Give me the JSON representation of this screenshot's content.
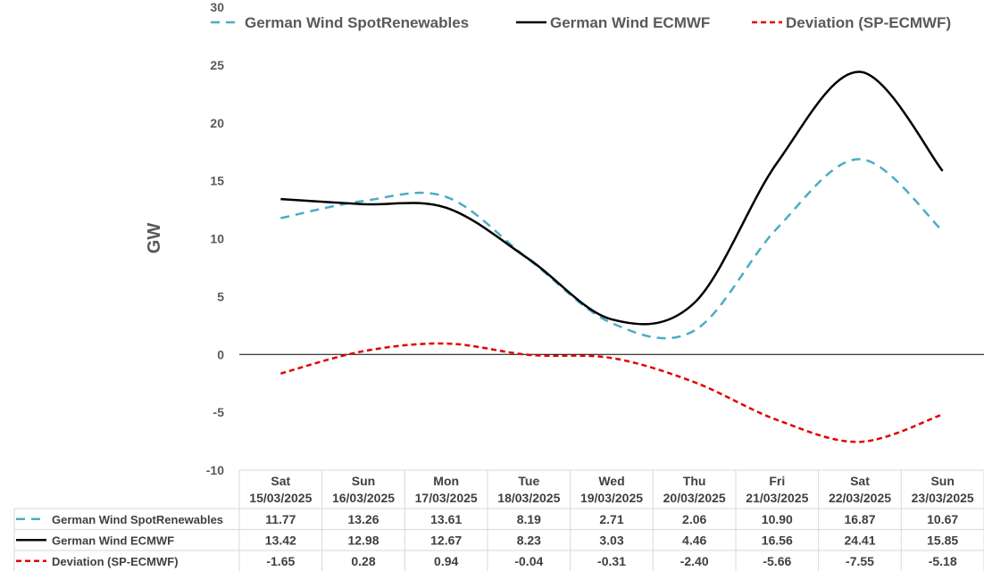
{
  "chart_data": {
    "type": "line",
    "ylabel": "GW",
    "ylim": [
      -10,
      30
    ],
    "yticks": [
      "30",
      "25",
      "20",
      "15",
      "10",
      "5",
      "0",
      "-5",
      "-10"
    ],
    "ytick_values": [
      30,
      25,
      20,
      15,
      10,
      5,
      0,
      -5,
      -10
    ],
    "categories": [
      {
        "day": "Sat",
        "date": "15/03/2025"
      },
      {
        "day": "Sun",
        "date": "16/03/2025"
      },
      {
        "day": "Mon",
        "date": "17/03/2025"
      },
      {
        "day": "Tue",
        "date": "18/03/2025"
      },
      {
        "day": "Wed",
        "date": "19/03/2025"
      },
      {
        "day": "Thu",
        "date": "20/03/2025"
      },
      {
        "day": "Fri",
        "date": "21/03/2025"
      },
      {
        "day": "Sat",
        "date": "22/03/2025"
      },
      {
        "day": "Sun",
        "date": "23/03/2025"
      }
    ],
    "legend_position": "top",
    "data_table": true,
    "series": [
      {
        "name": "German Wind SpotRenewables",
        "color": "#4bacc6",
        "dash": "dashed",
        "values": [
          11.77,
          13.26,
          13.61,
          8.19,
          2.71,
          2.06,
          10.9,
          16.87,
          10.67
        ],
        "labels": [
          "11.77",
          "13.26",
          "13.61",
          "8.19",
          "2.71",
          "2.06",
          "10.90",
          "16.87",
          "10.67"
        ]
      },
      {
        "name": "German Wind ECMWF",
        "color": "#000000",
        "dash": "solid",
        "values": [
          13.42,
          12.98,
          12.67,
          8.23,
          3.03,
          4.46,
          16.56,
          24.41,
          15.85
        ],
        "labels": [
          "13.42",
          "12.98",
          "12.67",
          "8.23",
          "3.03",
          "4.46",
          "16.56",
          "24.41",
          "15.85"
        ]
      },
      {
        "name": "Deviation (SP-ECMWF)",
        "color": "#e00000",
        "dash": "dotted",
        "values": [
          -1.65,
          0.28,
          0.94,
          -0.04,
          -0.31,
          -2.4,
          -5.66,
          -7.55,
          -5.18
        ],
        "labels": [
          "-1.65",
          "0.28",
          "0.94",
          "-0.04",
          "-0.31",
          "-2.40",
          "-5.66",
          "-7.55",
          "-5.18"
        ]
      }
    ]
  }
}
